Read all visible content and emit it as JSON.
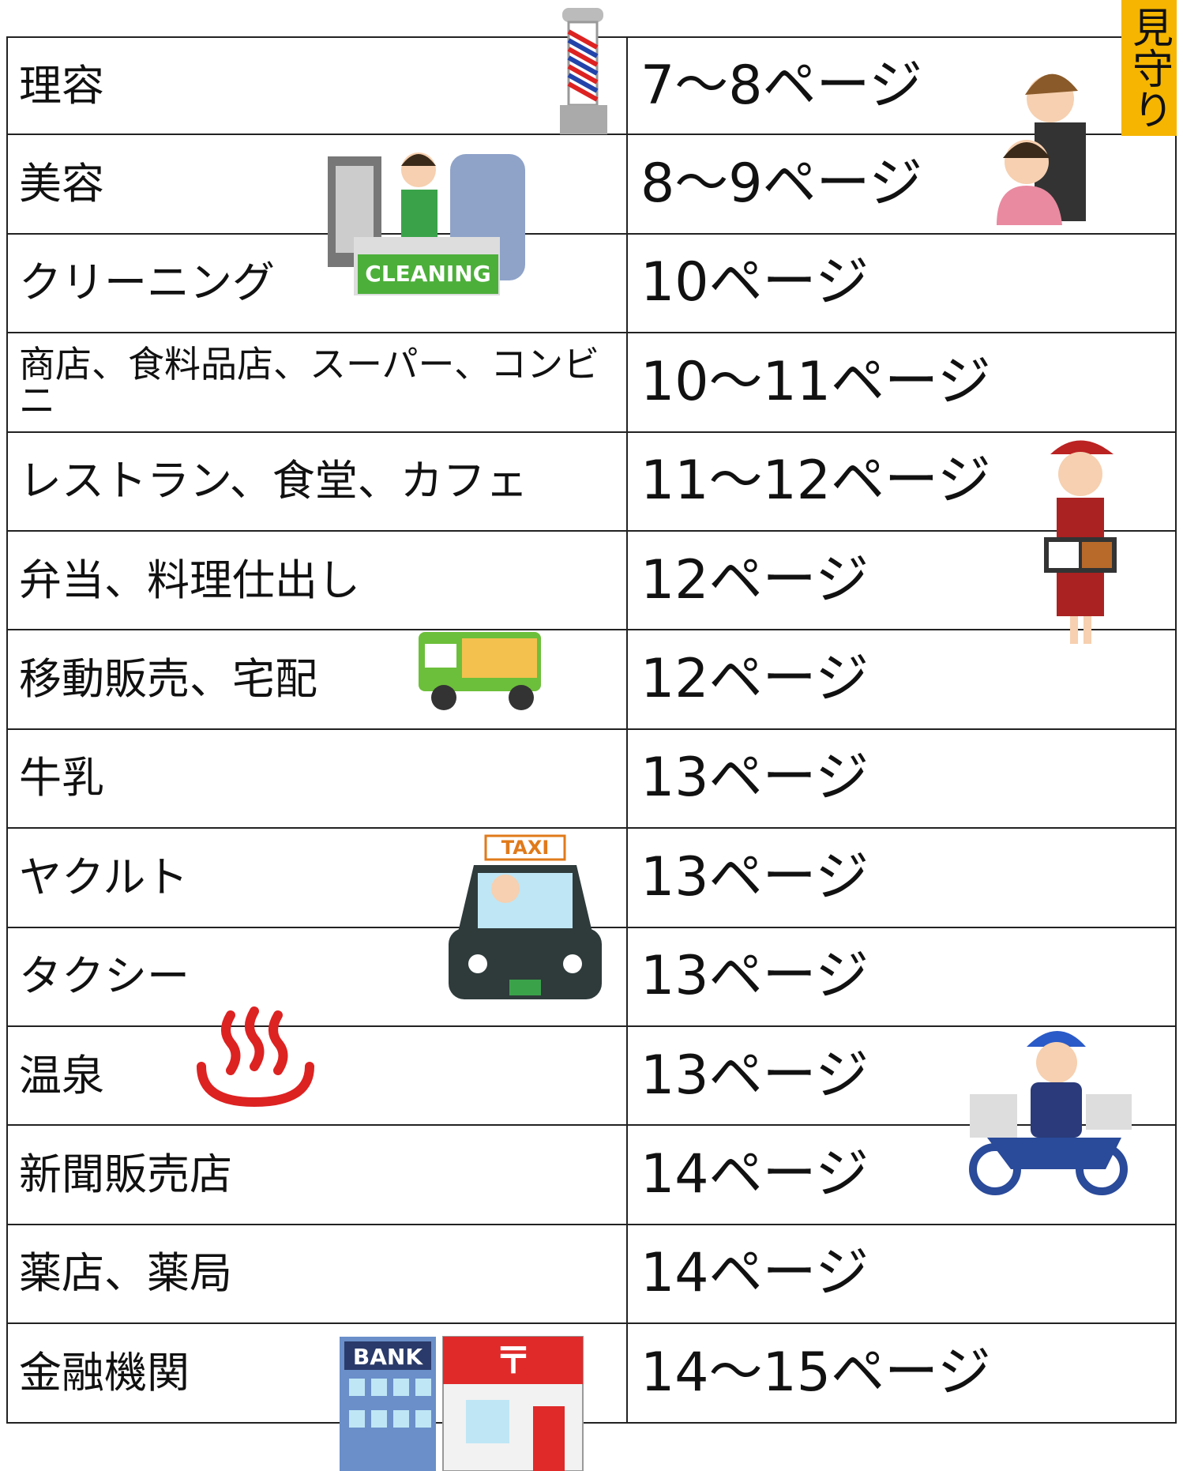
{
  "table": {
    "rows": [
      [
        "理容",
        "7～8ページ"
      ],
      [
        "美容",
        "8～9ページ"
      ],
      [
        "クリーニング",
        "10ページ"
      ],
      [
        "商店、食料品店、スーパー、コンビニ",
        "10～11ページ"
      ],
      [
        "レストラン、食堂、カフェ",
        "11～12ページ"
      ],
      [
        "弁当、料理仕出し",
        "12ページ"
      ],
      [
        "移動販売、宅配",
        "12ページ"
      ],
      [
        "牛乳",
        "13ページ"
      ],
      [
        "ヤクルト",
        "13ページ"
      ],
      [
        "タクシー",
        "13ページ"
      ],
      [
        "温泉",
        "13ページ"
      ],
      [
        "新聞販売店",
        "14ページ"
      ],
      [
        "薬店、薬局",
        "14ページ"
      ],
      [
        "金融機関",
        "14～15ページ"
      ]
    ]
  },
  "tag": "見守り",
  "illustrations": {
    "cleaning_sign": "CLEANING",
    "taxi_sign": "TAXI",
    "bank_sign": "BANK",
    "post_mark": "〒"
  }
}
